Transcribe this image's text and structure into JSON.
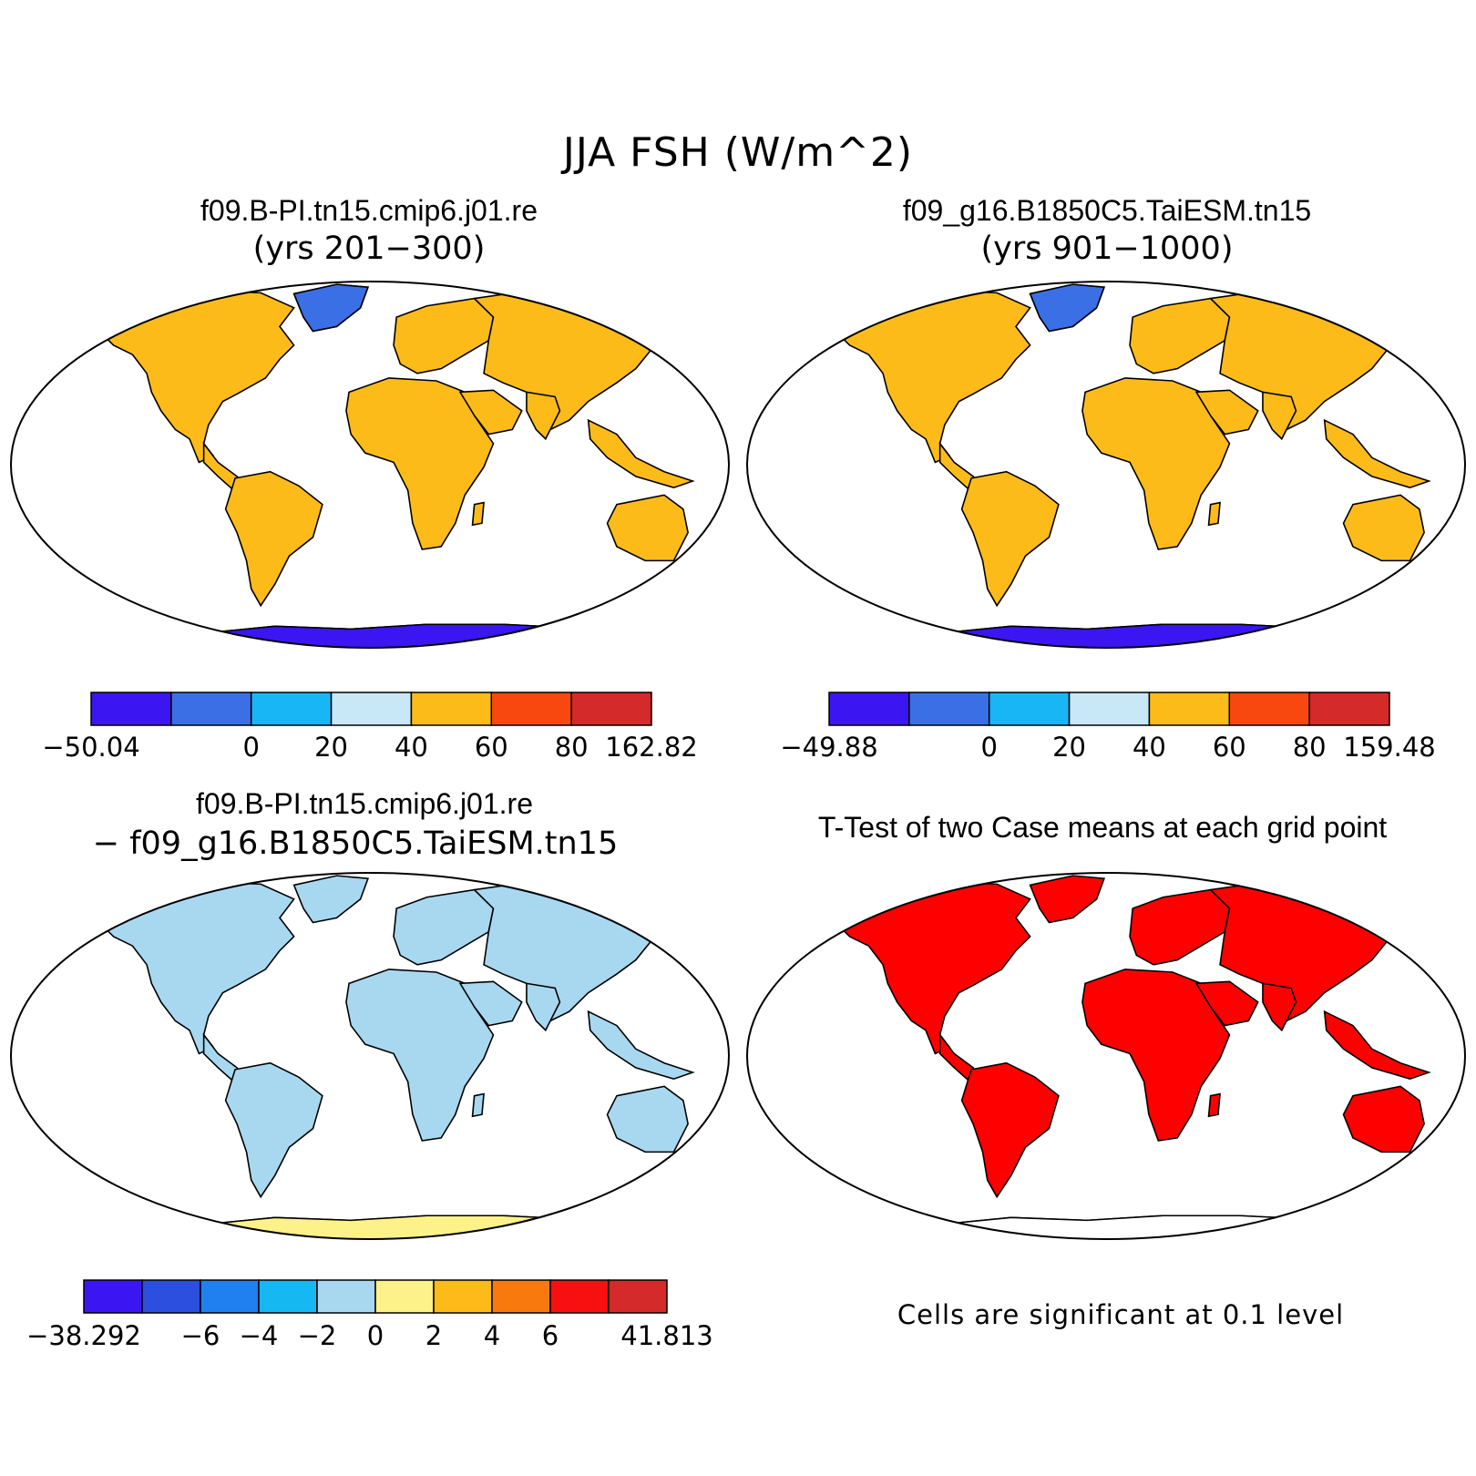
{
  "main_title": "JJA FSH (W/m^2)",
  "panels": [
    {
      "title": "f09.B-PI.tn15.cmip6.j01.re",
      "subtitle": "(yrs 201-300)",
      "colorbar": {
        "colors": [
          "#3b16f2",
          "#3a6fe6",
          "#19b6f5",
          "#c8e7f7",
          "#fdbb1a",
          "#f8480f",
          "#d42a2a"
        ],
        "labels": [
          "-50.04",
          "",
          "0",
          "20",
          "40",
          "60",
          "80",
          "162.82"
        ]
      }
    },
    {
      "title": "f09_g16.B1850C5.TaiESM.tn15",
      "subtitle": "(yrs 901-1000)",
      "colorbar": {
        "colors": [
          "#3b16f2",
          "#3a6fe6",
          "#19b6f5",
          "#c8e7f7",
          "#fdbb1a",
          "#f8480f",
          "#d42a2a"
        ],
        "labels": [
          "-49.88",
          "",
          "0",
          "20",
          "40",
          "60",
          "80",
          "159.48"
        ]
      }
    },
    {
      "title": "f09.B-PI.tn15.cmip6.j01.re",
      "subtitle": "- f09_g16.B1850C5.TaiESM.tn15",
      "colorbar": {
        "colors": [
          "#3b16f2",
          "#2c4fe0",
          "#2080f0",
          "#16b8f2",
          "#a8d8f0",
          "#fdf18a",
          "#fdbb1a",
          "#f87a0f",
          "#f81010",
          "#d42a2a"
        ],
        "labels": [
          "-38.292",
          "",
          "-6",
          "-4",
          "-2",
          "0",
          "2",
          "4",
          "6",
          "",
          "41.813"
        ]
      }
    },
    {
      "title": "T-Test of two Case means at each grid point",
      "note": "Cells are significant at 0.1 level",
      "significance_color": "#ff0000"
    }
  ]
}
